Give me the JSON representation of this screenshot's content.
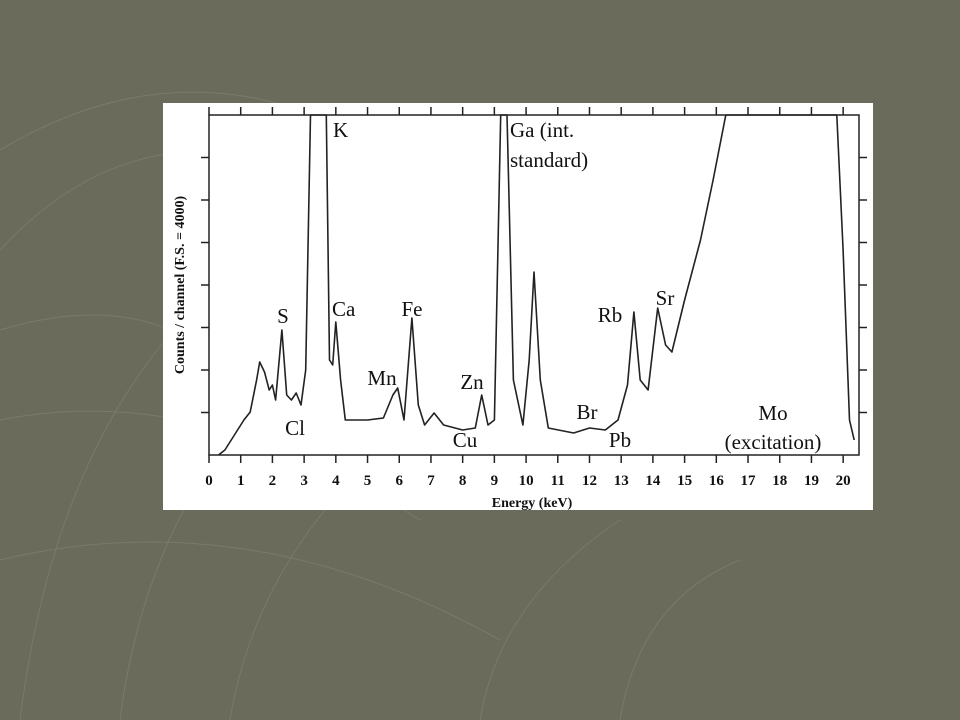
{
  "chart_data": {
    "type": "line",
    "xlabel": "Energy (keV)",
    "ylabel": "Counts / channel (F.S. = 4000)",
    "xlim": [
      0,
      20.5
    ],
    "ylim": [
      0,
      4000
    ],
    "xticks": [
      0,
      1,
      2,
      3,
      4,
      5,
      6,
      7,
      8,
      9,
      10,
      11,
      12,
      13,
      14,
      15,
      16,
      17,
      18,
      19,
      20
    ],
    "yticks": [
      500,
      1000,
      1500,
      2000,
      2500,
      3000,
      3500
    ],
    "series": [
      {
        "color": "#222222",
        "x": [
          0.3,
          0.5,
          0.8,
          1.1,
          1.3,
          1.5,
          1.6,
          1.75,
          1.9,
          2.0,
          2.1,
          2.3,
          2.45,
          2.6,
          2.75,
          2.9,
          3.05,
          3.2,
          3.7,
          3.8,
          3.9,
          4.0,
          4.15,
          4.3,
          5.0,
          5.5,
          5.8,
          5.95,
          6.15,
          6.4,
          6.6,
          6.8,
          7.1,
          7.4,
          8.0,
          8.4,
          8.6,
          8.8,
          9.0,
          9.2,
          9.4,
          9.6,
          9.9,
          10.1,
          10.25,
          10.45,
          10.7,
          11.5,
          12.0,
          12.5,
          12.9,
          13.2,
          13.4,
          13.6,
          13.85,
          14.15,
          14.4,
          14.6,
          15.0,
          15.5,
          15.9,
          16.3,
          19.8,
          20.0,
          20.2,
          20.35
        ],
        "values": [
          0,
          59,
          235,
          412,
          506,
          882,
          1094,
          976,
          765,
          824,
          647,
          1471,
          706,
          647,
          729,
          588,
          1000,
          4000,
          4000,
          1118,
          1059,
          1565,
          882,
          412,
          412,
          435,
          706,
          788,
          412,
          1612,
          588,
          353,
          494,
          353,
          294,
          318,
          706,
          353,
          412,
          4000,
          4000,
          882,
          353,
          1118,
          2153,
          882,
          318,
          259,
          318,
          294,
          412,
          824,
          1682,
          882,
          765,
          1729,
          1294,
          1212,
          1824,
          2529,
          3235,
          4000,
          4000,
          2412,
          412,
          176
        ]
      }
    ],
    "annotations": [
      "K",
      "Ga (int.",
      "standard)",
      "S",
      "Cl",
      "Ca",
      "Mn",
      "Fe",
      "Cu",
      "Zn",
      "Br",
      "Pb",
      "Rb",
      "Sr",
      "Mo",
      "(excitation)"
    ]
  }
}
